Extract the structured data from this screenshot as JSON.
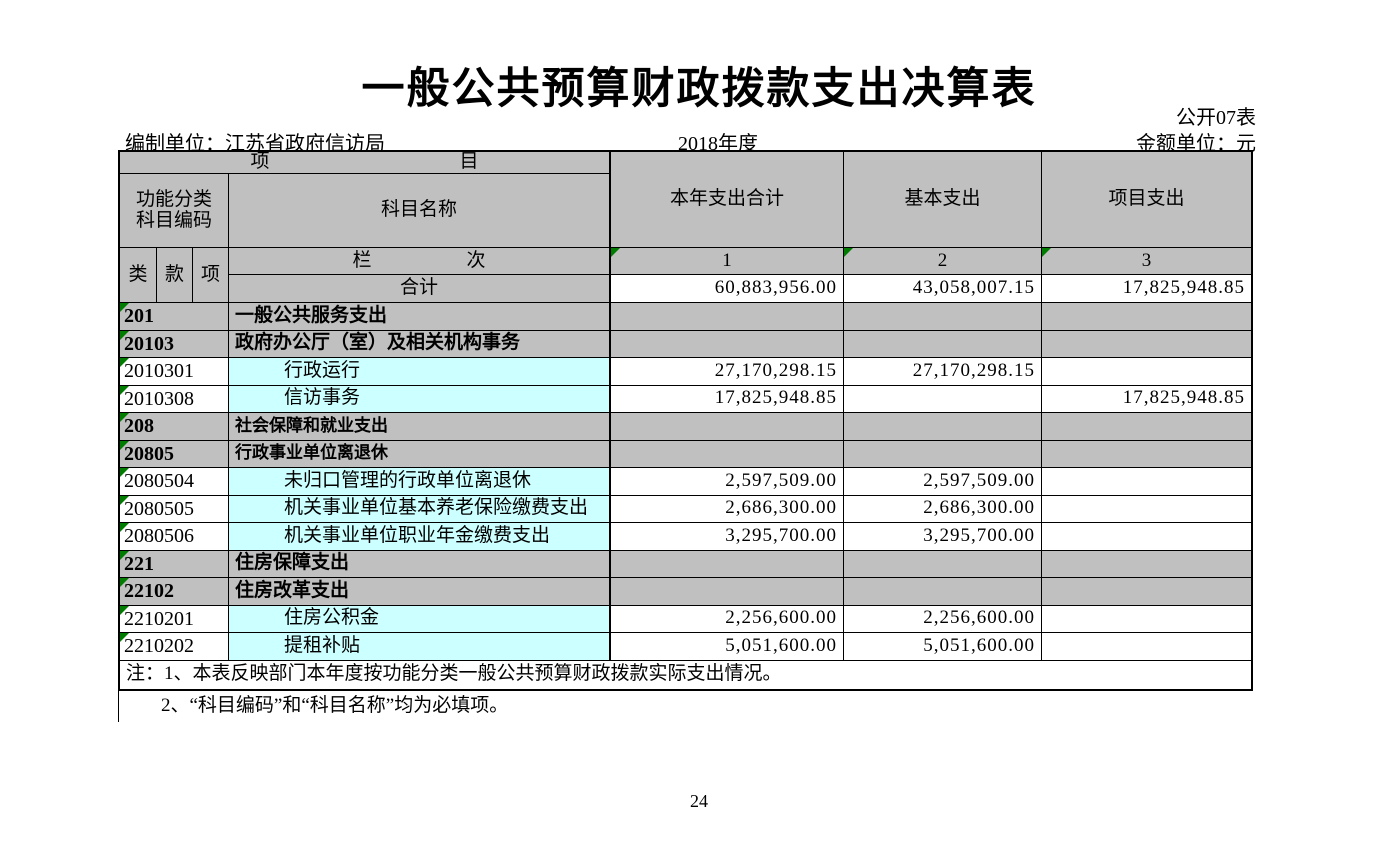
{
  "meta": {
    "title": "一般公共预算财政拨款支出决算表",
    "table_code": "公开07表",
    "prepared_by": "编制单位：江苏省政府信访局",
    "fiscal_year": "2018年度",
    "amount_unit": "金额单位：元",
    "page_number": "24"
  },
  "table": {
    "header": {
      "project": "项　　　　　　　　　　目",
      "func_code_line1": "功能分类",
      "func_code_line2": "科目编码",
      "subject_name": "科目名称",
      "col_year_total": "本年支出合计",
      "col_basic": "基本支出",
      "col_project": "项目支出",
      "sub_lei": "类",
      "sub_kuan": "款",
      "sub_xiang": "项",
      "lanci": "栏　　　　　次",
      "col_no_1": "1",
      "col_no_2": "2",
      "col_no_3": "3"
    },
    "total_row": {
      "label": "合计",
      "year_total": "60,883,956.00",
      "basic": "43,058,007.15",
      "project": "17,825,948.85"
    },
    "rows": [
      {
        "code": "201",
        "name": "一般公共服务支出",
        "section": true,
        "v1": "",
        "v2": "",
        "v3": ""
      },
      {
        "code": "20103",
        "name": "政府办公厅（室）及相关机构事务",
        "section": true,
        "v1": "",
        "v2": "",
        "v3": ""
      },
      {
        "code": "2010301",
        "name": "行政运行",
        "section": false,
        "v1": "27,170,298.15",
        "v2": "27,170,298.15",
        "v3": ""
      },
      {
        "code": "2010308",
        "name": "信访事务",
        "section": false,
        "v1": "17,825,948.85",
        "v2": "",
        "v3": "17,825,948.85"
      },
      {
        "code": "208",
        "name": "社会保障和就业支出",
        "section": true,
        "v1": "",
        "v2": "",
        "v3": ""
      },
      {
        "code": "20805",
        "name": "行政事业单位离退休",
        "section": true,
        "v1": "",
        "v2": "",
        "v3": ""
      },
      {
        "code": "2080504",
        "name": "未归口管理的行政单位离退休",
        "section": false,
        "v1": "2,597,509.00",
        "v2": "2,597,509.00",
        "v3": ""
      },
      {
        "code": "2080505",
        "name": "机关事业单位基本养老保险缴费支出",
        "section": false,
        "v1": "2,686,300.00",
        "v2": "2,686,300.00",
        "v3": ""
      },
      {
        "code": "2080506",
        "name": "机关事业单位职业年金缴费支出",
        "section": false,
        "v1": "3,295,700.00",
        "v2": "3,295,700.00",
        "v3": ""
      },
      {
        "code": "221",
        "name": "住房保障支出",
        "section": true,
        "v1": "",
        "v2": "",
        "v3": ""
      },
      {
        "code": "22102",
        "name": "住房改革支出",
        "section": true,
        "v1": "",
        "v2": "",
        "v3": ""
      },
      {
        "code": "2210201",
        "name": "住房公积金",
        "section": false,
        "v1": "2,256,600.00",
        "v2": "2,256,600.00",
        "v3": ""
      },
      {
        "code": "2210202",
        "name": "提租补贴",
        "section": false,
        "v1": "5,051,600.00",
        "v2": "5,051,600.00",
        "v3": ""
      }
    ],
    "notes": {
      "note1": "注：1、本表反映部门本年度按功能分类一般公共预算财政拨款实际支出情况。",
      "note2": "2、“科目编码”和“科目名称”均为必填项。"
    }
  },
  "colors": {
    "header_bg": "#c0c0c0",
    "section_row_bg": "#c0c0c0",
    "subject_cell_bg": "#ccffff",
    "corner_marker_green": "#007d00",
    "border": "#000000"
  }
}
